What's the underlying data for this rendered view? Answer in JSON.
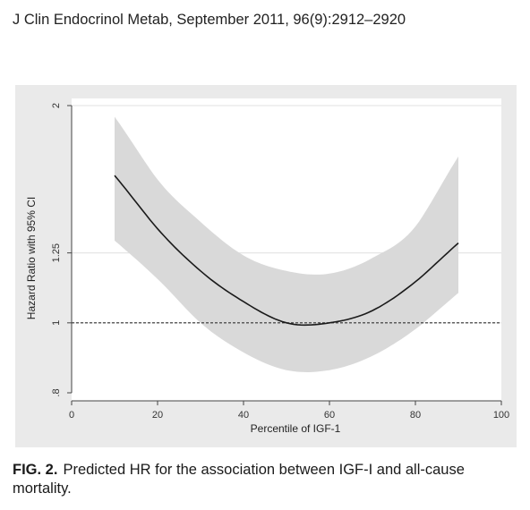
{
  "header": {
    "citation": "J Clin Endocrinol Metab, September 2011, 96(9):2912–2920"
  },
  "figure": {
    "caption_label": "FIG. 2.",
    "caption_text": "Predicted HR for the association between IGF-I and all-cause mortality."
  },
  "colors": {
    "panel_background": "#eaeaea",
    "plot_background": "#ffffff",
    "ci_band": "#d9d9d9",
    "curve": "#1a1a1a",
    "reference_line": "#333333"
  },
  "chart_data": {
    "type": "line",
    "title": "",
    "xlabel": "Percentile of IGF-1",
    "ylabel": "Hazard Ratio with 95% CI",
    "xlim": [
      0,
      100
    ],
    "ylim": [
      0.8,
      2
    ],
    "y_scale": "log",
    "x_ticks": [
      0,
      20,
      40,
      60,
      80,
      100
    ],
    "y_ticks": [
      0.8,
      1,
      1.25,
      2
    ],
    "y_tick_labels": [
      ".8",
      "1",
      "1.25",
      "2"
    ],
    "grid": "horizontal",
    "reference_line_y": 1,
    "x": [
      10,
      20,
      30,
      40,
      50,
      60,
      70,
      80,
      90
    ],
    "series": [
      {
        "values": [
          1.6,
          1.35,
          1.18,
          1.07,
          1.0,
          1.0,
          1.04,
          1.14,
          1.29
        ],
        "lower": [
          1.3,
          1.15,
          1.0,
          0.91,
          0.86,
          0.86,
          0.9,
          0.98,
          1.1
        ],
        "upper": [
          1.93,
          1.58,
          1.38,
          1.24,
          1.18,
          1.17,
          1.23,
          1.36,
          1.7
        ]
      }
    ]
  }
}
